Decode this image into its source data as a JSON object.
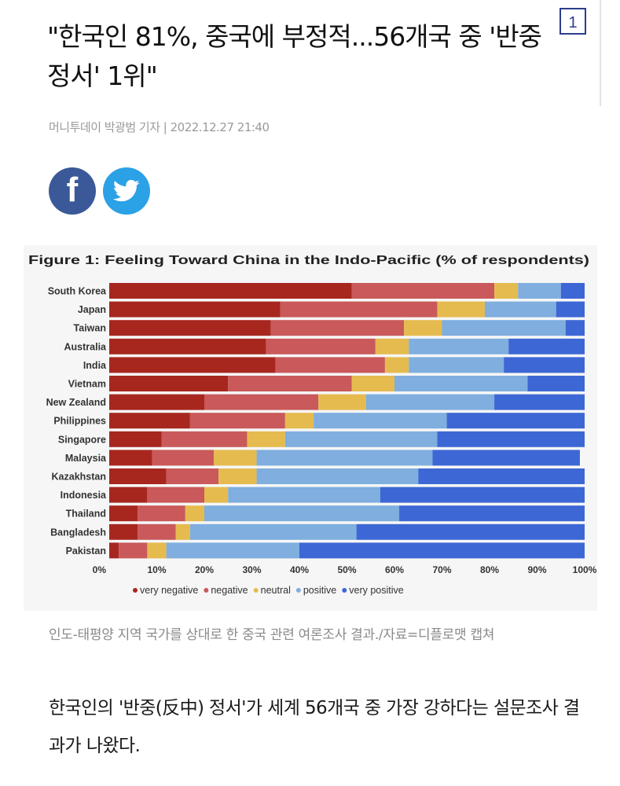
{
  "article": {
    "headline": "\"한국인 81%, 중국에 부정적...56개국 중 '반중정서' 1위\"",
    "badge": "1",
    "byline": "머니투데이 박광범 기자 | 2022.12.27 21:40",
    "share": {
      "facebook_icon": "facebook-icon",
      "twitter_icon": "twitter-icon"
    },
    "caption": "인도-태평양 지역 국가를 상대로 한 중국 관련 여론조사 결과./자료=디플로맷 캡쳐",
    "lead": "한국인의 '반중(反中) 정서'가 세계 56개국 중 가장 강하다는 설문조사 결과가 나왔다."
  },
  "chart_data": {
    "type": "bar",
    "orientation": "horizontal",
    "stacked": true,
    "title": "Figure 1: Feeling Toward China in the Indo-Pacific (% of respondents)",
    "categories": [
      "South Korea",
      "Japan",
      "Taiwan",
      "Australia",
      "India",
      "Vietnam",
      "New Zealand",
      "Philippines",
      "Singapore",
      "Malaysia",
      "Kazakhstan",
      "Indonesia",
      "Thailand",
      "Bangladesh",
      "Pakistan"
    ],
    "x_ticks": [
      "0%",
      "10%",
      "20%",
      "30%",
      "40%",
      "50%",
      "60%",
      "70%",
      "80%",
      "90%",
      "100%"
    ],
    "xlim": [
      0,
      100
    ],
    "legend_position": "bottom",
    "series": [
      {
        "name": "very negative",
        "color": "#a7271f",
        "values": [
          51,
          36,
          34,
          33,
          35,
          25,
          20,
          17,
          11,
          9,
          12,
          8,
          6,
          6,
          2
        ]
      },
      {
        "name": "negative",
        "color": "#c9595a",
        "values": [
          30,
          33,
          28,
          23,
          23,
          26,
          24,
          20,
          18,
          13,
          11,
          12,
          10,
          8,
          6
        ]
      },
      {
        "name": "neutral",
        "color": "#e5bb4f",
        "values": [
          5,
          10,
          8,
          7,
          5,
          9,
          10,
          6,
          8,
          9,
          8,
          5,
          4,
          3,
          4
        ]
      },
      {
        "name": "positive",
        "color": "#7faedf",
        "values": [
          9,
          15,
          26,
          21,
          20,
          28,
          27,
          28,
          32,
          37,
          34,
          32,
          41,
          35,
          28
        ]
      },
      {
        "name": "very positive",
        "color": "#3d67d4",
        "values": [
          5,
          6,
          4,
          16,
          17,
          12,
          19,
          29,
          31,
          31,
          35,
          43,
          39,
          48,
          60
        ]
      }
    ]
  }
}
